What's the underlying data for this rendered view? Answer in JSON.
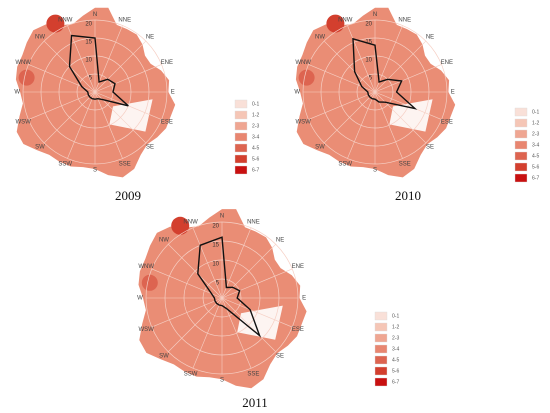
{
  "chart_data": [
    {
      "type": "radar",
      "title": "2009",
      "categories": [
        "N",
        "NNE",
        "NE",
        "ENE",
        "E",
        "ESE",
        "SE",
        "SSE",
        "S",
        "SSW",
        "SW",
        "WSW",
        "W",
        "WNW",
        "NW",
        "NNW"
      ],
      "values": [
        15,
        3,
        5,
        6,
        5,
        10,
        3,
        2,
        2,
        2,
        2,
        2,
        2,
        4,
        10,
        17
      ],
      "rlim": [
        0,
        20
      ],
      "rticks": [
        5,
        10,
        15,
        20
      ],
      "color": "#111111",
      "legend": [
        {
          "label": "0-1",
          "color": "#f9e0d8"
        },
        {
          "label": "1-2",
          "color": "#f5c6b6"
        },
        {
          "label": "2-3",
          "color": "#efa692"
        },
        {
          "label": "3-4",
          "color": "#e88670"
        },
        {
          "label": "4-5",
          "color": "#dd6450"
        },
        {
          "label": "5-6",
          "color": "#d33f2e"
        },
        {
          "label": "6-7",
          "color": "#c81010"
        }
      ]
    },
    {
      "type": "radar",
      "title": "2010",
      "categories": [
        "N",
        "NNE",
        "NE",
        "ENE",
        "E",
        "ESE",
        "SE",
        "SSE",
        "S",
        "SSW",
        "SW",
        "WSW",
        "W",
        "WNW",
        "NW",
        "NNW"
      ],
      "values": [
        13,
        3,
        5,
        8,
        6,
        12,
        4,
        3,
        2,
        2,
        2,
        2,
        2,
        4,
        8,
        16
      ],
      "rlim": [
        0,
        20
      ],
      "rticks": [
        5,
        10,
        15,
        20
      ],
      "color": "#111111",
      "legend": [
        {
          "label": "0-1",
          "color": "#f9e0d8"
        },
        {
          "label": "1-2",
          "color": "#f5c6b6"
        },
        {
          "label": "2-3",
          "color": "#efa692"
        },
        {
          "label": "3-4",
          "color": "#e88670"
        },
        {
          "label": "4-5",
          "color": "#dd6450"
        },
        {
          "label": "5-6",
          "color": "#d33f2e"
        },
        {
          "label": "6-7",
          "color": "#c81010"
        }
      ]
    },
    {
      "type": "radar",
      "title": "2011",
      "categories": [
        "N",
        "NNE",
        "NE",
        "ENE",
        "E",
        "ESE",
        "SE",
        "SSE",
        "S",
        "SSW",
        "SW",
        "WSW",
        "W",
        "WNW",
        "NW",
        "NNW"
      ],
      "values": [
        16,
        3,
        4,
        5,
        4,
        8,
        14,
        3,
        2,
        2,
        2,
        2,
        2,
        3,
        9,
        15
      ],
      "rlim": [
        0,
        20
      ],
      "rticks": [
        5,
        10,
        15,
        20
      ],
      "color": "#111111",
      "legend": [
        {
          "label": "0-1",
          "color": "#f9e0d8"
        },
        {
          "label": "1-2",
          "color": "#f5c6b6"
        },
        {
          "label": "2-3",
          "color": "#efa692"
        },
        {
          "label": "3-4",
          "color": "#e88670"
        },
        {
          "label": "4-5",
          "color": "#dd6450"
        },
        {
          "label": "5-6",
          "color": "#d33f2e"
        },
        {
          "label": "6-7",
          "color": "#c81010"
        }
      ]
    }
  ]
}
